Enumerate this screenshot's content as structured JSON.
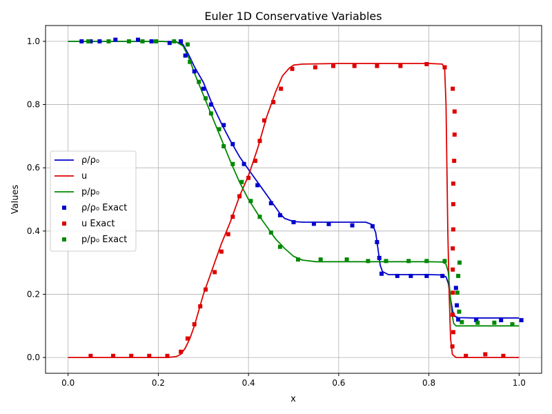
{
  "chart_data": {
    "type": "line",
    "title": "Euler 1D Conservative Variables",
    "xlabel": "x",
    "ylabel": "Values",
    "xlim": [
      -0.05,
      1.05
    ],
    "ylim": [
      -0.05,
      1.05
    ],
    "xticks": [
      0.0,
      0.2,
      0.4,
      0.6,
      0.8,
      1.0
    ],
    "yticks": [
      0.0,
      0.2,
      0.4,
      0.6,
      0.8,
      1.0
    ],
    "xtick_labels": [
      "0.0",
      "0.2",
      "0.4",
      "0.6",
      "0.8",
      "1.0"
    ],
    "ytick_labels": [
      "0.0",
      "0.2",
      "0.4",
      "0.6",
      "0.8",
      "1.0"
    ],
    "grid": true,
    "legend_position": "center-left",
    "series": [
      {
        "name": "ρ/ρ₀",
        "kind": "line",
        "color": "#0000cc",
        "points": [
          [
            0.0,
            1.0
          ],
          [
            0.2,
            1.0
          ],
          [
            0.24,
            0.998
          ],
          [
            0.255,
            0.99
          ],
          [
            0.27,
            0.95
          ],
          [
            0.28,
            0.92
          ],
          [
            0.3,
            0.87
          ],
          [
            0.32,
            0.8
          ],
          [
            0.34,
            0.74
          ],
          [
            0.36,
            0.685
          ],
          [
            0.38,
            0.635
          ],
          [
            0.4,
            0.595
          ],
          [
            0.42,
            0.555
          ],
          [
            0.44,
            0.515
          ],
          [
            0.46,
            0.475
          ],
          [
            0.47,
            0.455
          ],
          [
            0.48,
            0.44
          ],
          [
            0.5,
            0.43
          ],
          [
            0.52,
            0.428
          ],
          [
            0.6,
            0.428
          ],
          [
            0.64,
            0.428
          ],
          [
            0.66,
            0.428
          ],
          [
            0.675,
            0.42
          ],
          [
            0.682,
            0.395
          ],
          [
            0.687,
            0.345
          ],
          [
            0.692,
            0.292
          ],
          [
            0.697,
            0.272
          ],
          [
            0.71,
            0.262
          ],
          [
            0.75,
            0.262
          ],
          [
            0.8,
            0.262
          ],
          [
            0.83,
            0.261
          ],
          [
            0.838,
            0.255
          ],
          [
            0.843,
            0.235
          ],
          [
            0.848,
            0.185
          ],
          [
            0.853,
            0.145
          ],
          [
            0.858,
            0.13
          ],
          [
            0.865,
            0.126
          ],
          [
            0.9,
            0.125
          ],
          [
            1.0,
            0.125
          ]
        ]
      },
      {
        "name": "u",
        "kind": "line",
        "color": "#dd0000",
        "points": [
          [
            0.0,
            0.0
          ],
          [
            0.22,
            0.0
          ],
          [
            0.24,
            0.003
          ],
          [
            0.25,
            0.01
          ],
          [
            0.26,
            0.03
          ],
          [
            0.27,
            0.06
          ],
          [
            0.28,
            0.1
          ],
          [
            0.3,
            0.2
          ],
          [
            0.32,
            0.28
          ],
          [
            0.34,
            0.36
          ],
          [
            0.36,
            0.43
          ],
          [
            0.38,
            0.51
          ],
          [
            0.4,
            0.575
          ],
          [
            0.42,
            0.66
          ],
          [
            0.44,
            0.76
          ],
          [
            0.46,
            0.84
          ],
          [
            0.475,
            0.89
          ],
          [
            0.49,
            0.915
          ],
          [
            0.5,
            0.925
          ],
          [
            0.52,
            0.928
          ],
          [
            0.6,
            0.93
          ],
          [
            0.7,
            0.93
          ],
          [
            0.8,
            0.93
          ],
          [
            0.83,
            0.928
          ],
          [
            0.835,
            0.91
          ],
          [
            0.838,
            0.8
          ],
          [
            0.84,
            0.6
          ],
          [
            0.842,
            0.4
          ],
          [
            0.845,
            0.2
          ],
          [
            0.848,
            0.06
          ],
          [
            0.852,
            0.01
          ],
          [
            0.86,
            0.0
          ],
          [
            1.0,
            0.0
          ]
        ]
      },
      {
        "name": "p/p₀",
        "kind": "line",
        "color": "#008800",
        "points": [
          [
            0.0,
            1.0
          ],
          [
            0.2,
            1.0
          ],
          [
            0.24,
            0.998
          ],
          [
            0.255,
            0.985
          ],
          [
            0.27,
            0.94
          ],
          [
            0.28,
            0.9
          ],
          [
            0.3,
            0.83
          ],
          [
            0.32,
            0.76
          ],
          [
            0.34,
            0.69
          ],
          [
            0.36,
            0.62
          ],
          [
            0.38,
            0.555
          ],
          [
            0.4,
            0.5
          ],
          [
            0.42,
            0.455
          ],
          [
            0.44,
            0.415
          ],
          [
            0.46,
            0.375
          ],
          [
            0.48,
            0.345
          ],
          [
            0.5,
            0.32
          ],
          [
            0.52,
            0.308
          ],
          [
            0.55,
            0.303
          ],
          [
            0.6,
            0.303
          ],
          [
            0.7,
            0.303
          ],
          [
            0.8,
            0.303
          ],
          [
            0.83,
            0.302
          ],
          [
            0.838,
            0.295
          ],
          [
            0.843,
            0.27
          ],
          [
            0.847,
            0.2
          ],
          [
            0.851,
            0.14
          ],
          [
            0.855,
            0.108
          ],
          [
            0.86,
            0.1
          ],
          [
            0.9,
            0.1
          ],
          [
            1.0,
            0.1
          ]
        ]
      },
      {
        "name": "ρ/ρ₀ Exact",
        "kind": "scatter",
        "color": "#0000cc",
        "points": [
          [
            0.03,
            1.0
          ],
          [
            0.05,
            1.0
          ],
          [
            0.07,
            1.0
          ],
          [
            0.105,
            1.005
          ],
          [
            0.155,
            1.005
          ],
          [
            0.185,
            1.0
          ],
          [
            0.225,
            0.995
          ],
          [
            0.25,
            1.0
          ],
          [
            0.26,
            0.955
          ],
          [
            0.28,
            0.905
          ],
          [
            0.3,
            0.85
          ],
          [
            0.317,
            0.8
          ],
          [
            0.345,
            0.735
          ],
          [
            0.365,
            0.675
          ],
          [
            0.39,
            0.612
          ],
          [
            0.42,
            0.545
          ],
          [
            0.45,
            0.488
          ],
          [
            0.47,
            0.45
          ],
          [
            0.5,
            0.428
          ],
          [
            0.545,
            0.423
          ],
          [
            0.578,
            0.422
          ],
          [
            0.63,
            0.418
          ],
          [
            0.675,
            0.415
          ],
          [
            0.685,
            0.365
          ],
          [
            0.69,
            0.315
          ],
          [
            0.695,
            0.265
          ],
          [
            0.73,
            0.258
          ],
          [
            0.76,
            0.258
          ],
          [
            0.795,
            0.258
          ],
          [
            0.83,
            0.258
          ],
          [
            0.86,
            0.22
          ],
          [
            0.862,
            0.165
          ],
          [
            0.865,
            0.12
          ],
          [
            0.905,
            0.118
          ],
          [
            0.96,
            0.118
          ],
          [
            1.005,
            0.118
          ]
        ]
      },
      {
        "name": "u Exact",
        "kind": "scatter",
        "color": "#dd0000",
        "points": [
          [
            0.05,
            0.005
          ],
          [
            0.1,
            0.005
          ],
          [
            0.14,
            0.005
          ],
          [
            0.18,
            0.005
          ],
          [
            0.22,
            0.005
          ],
          [
            0.25,
            0.018
          ],
          [
            0.265,
            0.06
          ],
          [
            0.28,
            0.105
          ],
          [
            0.293,
            0.162
          ],
          [
            0.305,
            0.215
          ],
          [
            0.325,
            0.27
          ],
          [
            0.34,
            0.335
          ],
          [
            0.355,
            0.39
          ],
          [
            0.365,
            0.445
          ],
          [
            0.38,
            0.51
          ],
          [
            0.4,
            0.568
          ],
          [
            0.415,
            0.622
          ],
          [
            0.425,
            0.685
          ],
          [
            0.435,
            0.75
          ],
          [
            0.455,
            0.808
          ],
          [
            0.472,
            0.85
          ],
          [
            0.497,
            0.913
          ],
          [
            0.548,
            0.918
          ],
          [
            0.588,
            0.922
          ],
          [
            0.635,
            0.922
          ],
          [
            0.685,
            0.922
          ],
          [
            0.737,
            0.922
          ],
          [
            0.795,
            0.928
          ],
          [
            0.835,
            0.918
          ],
          [
            0.853,
            0.85
          ],
          [
            0.857,
            0.778
          ],
          [
            0.857,
            0.705
          ],
          [
            0.856,
            0.622
          ],
          [
            0.854,
            0.55
          ],
          [
            0.854,
            0.485
          ],
          [
            0.854,
            0.405
          ],
          [
            0.853,
            0.345
          ],
          [
            0.853,
            0.278
          ],
          [
            0.853,
            0.205
          ],
          [
            0.853,
            0.135
          ],
          [
            0.854,
            0.08
          ],
          [
            0.852,
            0.035
          ],
          [
            0.882,
            0.005
          ],
          [
            0.925,
            0.01
          ],
          [
            0.965,
            0.005
          ]
        ]
      },
      {
        "name": "p/p₀ Exact",
        "kind": "scatter",
        "color": "#008800",
        "points": [
          [
            0.045,
            1.0
          ],
          [
            0.09,
            1.0
          ],
          [
            0.135,
            1.0
          ],
          [
            0.165,
            1.0
          ],
          [
            0.195,
            1.0
          ],
          [
            0.235,
            1.0
          ],
          [
            0.265,
            0.99
          ],
          [
            0.27,
            0.935
          ],
          [
            0.29,
            0.872
          ],
          [
            0.305,
            0.82
          ],
          [
            0.317,
            0.772
          ],
          [
            0.335,
            0.722
          ],
          [
            0.345,
            0.668
          ],
          [
            0.365,
            0.612
          ],
          [
            0.385,
            0.555
          ],
          [
            0.405,
            0.495
          ],
          [
            0.425,
            0.445
          ],
          [
            0.45,
            0.395
          ],
          [
            0.47,
            0.35
          ],
          [
            0.51,
            0.31
          ],
          [
            0.56,
            0.31
          ],
          [
            0.618,
            0.31
          ],
          [
            0.665,
            0.305
          ],
          [
            0.705,
            0.305
          ],
          [
            0.755,
            0.305
          ],
          [
            0.795,
            0.305
          ],
          [
            0.835,
            0.305
          ],
          [
            0.868,
            0.3
          ],
          [
            0.865,
            0.258
          ],
          [
            0.863,
            0.205
          ],
          [
            0.867,
            0.145
          ],
          [
            0.873,
            0.112
          ],
          [
            0.908,
            0.11
          ],
          [
            0.945,
            0.11
          ],
          [
            0.985,
            0.105
          ]
        ]
      }
    ]
  }
}
